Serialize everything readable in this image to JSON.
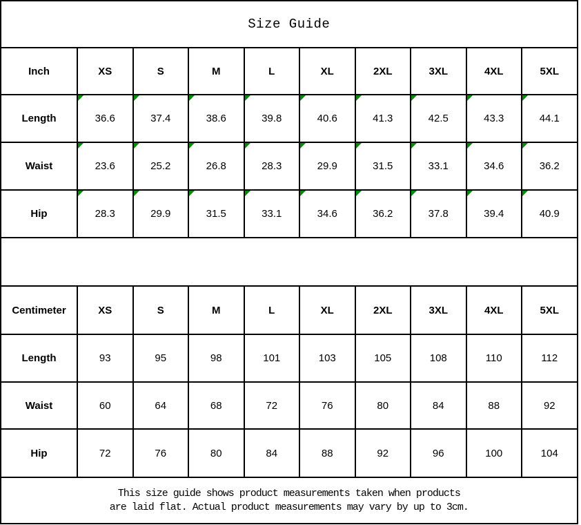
{
  "title": "Size Guide",
  "colors": {
    "border": "#000000",
    "marker_green": "#0a8a0a",
    "background": "#ffffff"
  },
  "size_columns": [
    "XS",
    "S",
    "M",
    "L",
    "XL",
    "2XL",
    "3XL",
    "4XL",
    "5XL"
  ],
  "tables": [
    {
      "unit_label": "Inch",
      "has_corner_markers": true,
      "rows": [
        {
          "label": "Length",
          "values": [
            "36.6",
            "37.4",
            "38.6",
            "39.8",
            "40.6",
            "41.3",
            "42.5",
            "43.3",
            "44.1"
          ]
        },
        {
          "label": "Waist",
          "values": [
            "23.6",
            "25.2",
            "26.8",
            "28.3",
            "29.9",
            "31.5",
            "33.1",
            "34.6",
            "36.2"
          ]
        },
        {
          "label": "Hip",
          "values": [
            "28.3",
            "29.9",
            "31.5",
            "33.1",
            "34.6",
            "36.2",
            "37.8",
            "39.4",
            "40.9"
          ]
        }
      ]
    },
    {
      "unit_label": "Centimeter",
      "has_corner_markers": false,
      "rows": [
        {
          "label": "Length",
          "values": [
            "93",
            "95",
            "98",
            "101",
            "103",
            "105",
            "108",
            "110",
            "112"
          ]
        },
        {
          "label": "Waist",
          "values": [
            "60",
            "64",
            "68",
            "72",
            "76",
            "80",
            "84",
            "88",
            "92"
          ]
        },
        {
          "label": "Hip",
          "values": [
            "72",
            "76",
            "80",
            "84",
            "88",
            "92",
            "96",
            "100",
            "104"
          ]
        }
      ]
    }
  ],
  "footer": {
    "line1": "This size guide shows product measurements taken when products",
    "line2": "are laid flat. Actual product measurements may vary by up to 3cm."
  }
}
